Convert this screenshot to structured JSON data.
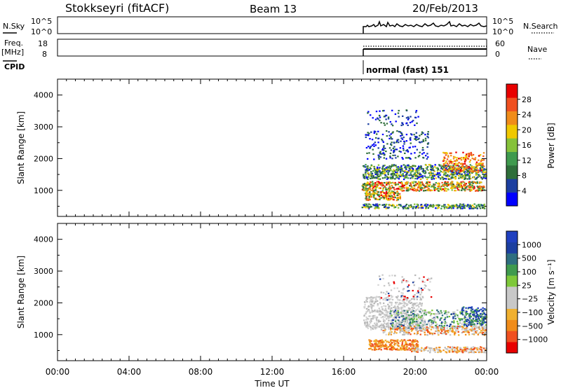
{
  "header": {
    "station": "Stokkseyri (fitACF)",
    "beam": "Beam 13",
    "date": "20/Feb/2013"
  },
  "top_panels": {
    "nsky_label": "N.Sky",
    "nsky_ticks": [
      "10^5",
      "10^0"
    ],
    "nsearch_ticks": [
      "10^5",
      "10^0"
    ],
    "nsearch_label": "N.Search",
    "freq_label_1": "Freq.",
    "freq_label_2": "[MHz]",
    "freq_ticks": [
      "18",
      "8"
    ],
    "nave_ticks": [
      "60",
      "0"
    ],
    "nave_label": "Nave",
    "cpid_label": "CPID",
    "cpid_text": "normal (fast) 151"
  },
  "colors": {
    "frame": "#000000",
    "grey_scatter": "#c8c8c8",
    "power_scale": [
      "#0000ff",
      "#1c3fa0",
      "#2e6e3a",
      "#3f9a4e",
      "#86c23a",
      "#f0c800",
      "#f08c1a",
      "#f05020",
      "#e80000"
    ],
    "velocity_scale": [
      "#e80000",
      "#f05020",
      "#f08c1a",
      "#f0b030",
      "#c8c8c8",
      "#c8c8c8",
      "#7ec83a",
      "#3f9a4e",
      "#2e6e80",
      "#1c3fa0",
      "#2040c0"
    ]
  },
  "chart_data": [
    {
      "type": "line",
      "name": "N.Sky / N.Search",
      "x_start_ut": "17:00",
      "x_end_ut": "24:00",
      "yscale": "log",
      "ylim": [
        "10^0",
        "10^5"
      ]
    },
    {
      "type": "line",
      "name": "Freq / Nave",
      "x_start_ut": "17:00",
      "x_end_ut": "24:00",
      "freq_ylim": [
        8,
        18
      ],
      "nave_ylim": [
        0,
        60
      ]
    },
    {
      "type": "heatmap",
      "name": "power",
      "ylabel": "Slant Range [km]",
      "xlim_ut": [
        "00:00",
        "24:00"
      ],
      "ylim_km": [
        180,
        4500
      ],
      "yticks": [
        1000,
        2000,
        3000,
        4000
      ],
      "colorbar_label": "Power [dB]",
      "colorbar_ticks": [
        4,
        8,
        12,
        16,
        20,
        24,
        28
      ],
      "colorbar_range": [
        0,
        32
      ],
      "data_start_ut": "17:00"
    },
    {
      "type": "heatmap",
      "name": "velocity",
      "ylabel": "Slant Range [km]",
      "xlabel": "Time UT",
      "xlim_ut": [
        "00:00",
        "24:00"
      ],
      "xticks": [
        "00:00",
        "04:00",
        "08:00",
        "12:00",
        "16:00",
        "20:00",
        "00:00"
      ],
      "ylim_km": [
        180,
        4500
      ],
      "yticks": [
        1000,
        2000,
        3000,
        4000
      ],
      "colorbar_label": "Velocity [m s⁻¹]",
      "colorbar_ticks": [
        "1000",
        "500",
        "100",
        "25",
        "−25",
        "−100",
        "−500",
        "−1000"
      ],
      "data_start_ut": "17:00"
    }
  ]
}
